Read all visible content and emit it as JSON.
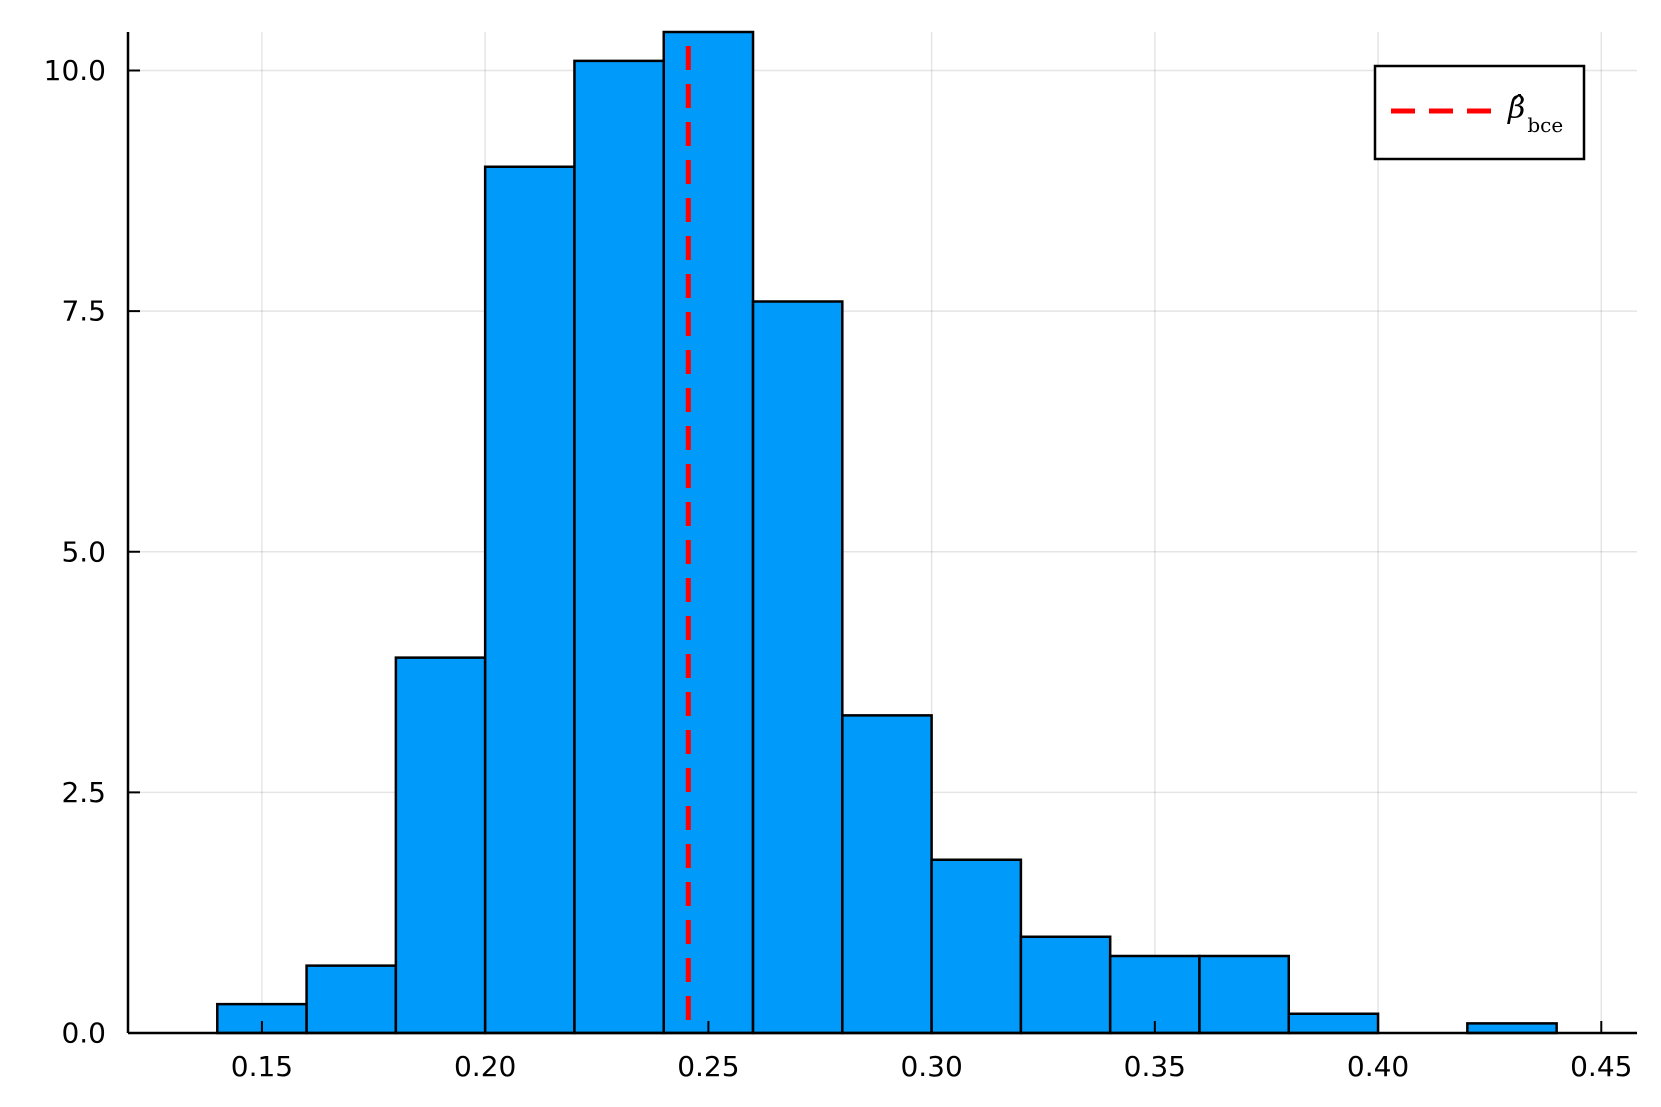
{
  "chart_data": {
    "type": "bar",
    "subtype": "histogram",
    "bin_edges": [
      0.14,
      0.16,
      0.18,
      0.2,
      0.22,
      0.24,
      0.26,
      0.28,
      0.3,
      0.32,
      0.34,
      0.36,
      0.38,
      0.4,
      0.42,
      0.44
    ],
    "values": [
      0.3,
      0.7,
      3.9,
      9.0,
      10.1,
      10.4,
      7.6,
      3.3,
      1.8,
      1.0,
      0.8,
      0.8,
      0.2,
      0.0,
      0.1
    ],
    "xlim": [
      0.12,
      0.458
    ],
    "ylim": [
      0,
      10.4
    ],
    "xticks": [
      0.15,
      0.2,
      0.25,
      0.3,
      0.35,
      0.4,
      0.45
    ],
    "xtick_labels": [
      "0.15",
      "0.20",
      "0.25",
      "0.30",
      "0.35",
      "0.40",
      "0.45"
    ],
    "yticks": [
      0.0,
      2.5,
      5.0,
      7.5,
      10.0
    ],
    "ytick_labels": [
      "0.0",
      "2.5",
      "5.0",
      "7.5",
      "10.0"
    ],
    "grid": true,
    "bar_color": "#009AFA",
    "bar_edge_color": "#000000",
    "vline": {
      "x": 0.2455,
      "color": "#FF0000",
      "style": "dashed"
    },
    "legend": {
      "position": "top-right",
      "entries": [
        {
          "symbol": "β̂",
          "subscript": "bce",
          "color": "#FF0000",
          "style": "dashed"
        }
      ]
    }
  }
}
